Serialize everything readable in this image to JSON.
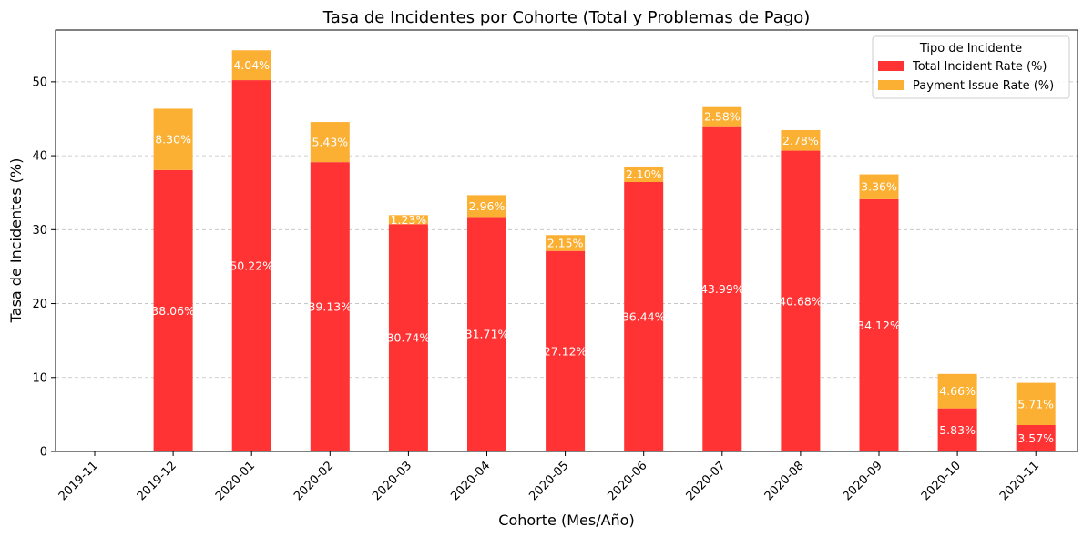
{
  "colors": {
    "total": "#ff3333",
    "payment": "#fbb034",
    "grid": "#bfbfbf"
  },
  "chart_data": {
    "type": "bar",
    "stacked": true,
    "title": "Tasa de Incidentes por Cohorte (Total y Problemas de Pago)",
    "xlabel": "Cohorte (Mes/Año)",
    "ylabel": "Tasa de Incidentes (%)",
    "ylim": [
      0,
      57
    ],
    "yticks": [
      0,
      10,
      20,
      30,
      40,
      50
    ],
    "grid": "y-dashed",
    "legend_position": "top-right",
    "legend_title": "Tipo de Incidente",
    "categories": [
      "2019-11",
      "2019-12",
      "2020-01",
      "2020-02",
      "2020-03",
      "2020-04",
      "2020-05",
      "2020-06",
      "2020-07",
      "2020-08",
      "2020-09",
      "2020-10",
      "2020-11"
    ],
    "series": [
      {
        "name": "Total Incident Rate (%)",
        "values": [
          0,
          38.06,
          50.22,
          39.13,
          30.74,
          31.71,
          27.12,
          36.44,
          43.99,
          40.68,
          34.12,
          5.83,
          3.57
        ],
        "labels": [
          "",
          "38.06%",
          "50.22%",
          "39.13%",
          "30.74%",
          "31.71%",
          "27.12%",
          "36.44%",
          "43.99%",
          "40.68%",
          "34.12%",
          "5.83%",
          "3.57%"
        ]
      },
      {
        "name": "Payment Issue Rate (%)",
        "values": [
          0,
          8.3,
          4.04,
          5.43,
          1.23,
          2.96,
          2.15,
          2.1,
          2.58,
          2.78,
          3.36,
          4.66,
          5.71
        ],
        "labels": [
          "",
          "8.30%",
          "4.04%",
          "5.43%",
          "1.23%",
          "2.96%",
          "2.15%",
          "2.10%",
          "2.58%",
          "2.78%",
          "3.36%",
          "4.66%",
          "5.71%"
        ]
      }
    ]
  }
}
